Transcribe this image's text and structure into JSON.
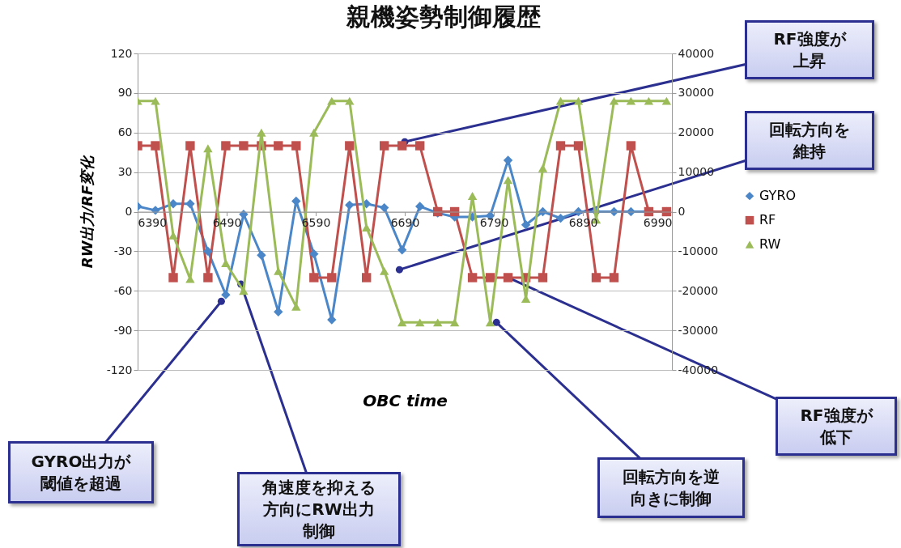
{
  "chart_data": {
    "type": "line",
    "title": "親機姿勢制御履歴",
    "xlabel": "OBC time",
    "ylabel": "RW出力/RF変化",
    "x": [
      6390,
      6410,
      6430,
      6449,
      6469,
      6489,
      6509,
      6529,
      6548,
      6568,
      6588,
      6608,
      6628,
      6647,
      6667,
      6687,
      6707,
      6727,
      6746,
      6766,
      6786,
      6806,
      6826,
      6845,
      6865,
      6885,
      6905,
      6925,
      6944,
      6964,
      6984
    ],
    "series": [
      {
        "name": "GYRO",
        "color": "#4a86c8",
        "marker": "diamond",
        "values": [
          4,
          1,
          6,
          6,
          -30,
          -63,
          -2,
          -33,
          -76,
          8,
          -32,
          -82,
          5,
          6,
          3,
          -29,
          4,
          -1,
          -4,
          -4,
          -3,
          39,
          -10,
          0,
          -5,
          0,
          0,
          0,
          0,
          0,
          0
        ]
      },
      {
        "name": "RF",
        "color": "#c0504d",
        "marker": "square",
        "values": [
          50,
          50,
          -50,
          50,
          -50,
          50,
          50,
          50,
          50,
          50,
          -50,
          -50,
          50,
          -50,
          50,
          50,
          50,
          0,
          0,
          -50,
          -50,
          -50,
          -50,
          -50,
          50,
          50,
          -50,
          -50,
          50,
          0,
          0
        ]
      },
      {
        "name": "RW",
        "color": "#9bbb59",
        "marker": "triangle",
        "axis": "y2",
        "values": [
          28000,
          28000,
          -6000,
          -17000,
          16000,
          -13000,
          -20000,
          20000,
          -15000,
          -24000,
          20000,
          28000,
          28000,
          -4000,
          -15000,
          -28000,
          -28000,
          -28000,
          -28000,
          4000,
          -28000,
          8000,
          -22000,
          11000,
          28000,
          28000,
          -2000,
          28000,
          28000,
          28000,
          28000
        ]
      }
    ],
    "xlim": [
      6390,
      6990
    ],
    "xticks": [
      6390,
      6490,
      6590,
      6690,
      6790,
      6890,
      6990
    ],
    "ylim": [
      -120,
      120
    ],
    "yticks": [
      -120,
      -90,
      -60,
      -30,
      0,
      30,
      60,
      90,
      120
    ],
    "y2lim": [
      -40000,
      40000
    ],
    "y2ticks": [
      -40000,
      -30000,
      -20000,
      -10000,
      0,
      10000,
      20000,
      30000,
      40000
    ],
    "grid": "y",
    "legend": "right",
    "annotations": [
      {
        "text": "RF強度が上昇",
        "x": 6690,
        "y": 53
      },
      {
        "text": "回転方向を維持",
        "x": 6684,
        "y": -44
      },
      {
        "text": "RF強度が低下",
        "x": 6806,
        "y": -50
      },
      {
        "text": "回転方向を逆向きに制御",
        "x": 6793,
        "y": -84
      },
      {
        "text": "GYRO出力が閾値を超過",
        "x": 6484,
        "y": -68
      },
      {
        "text": "角速度を抑える方向にRW出力制御",
        "x": 6506,
        "y": -55
      }
    ]
  }
}
